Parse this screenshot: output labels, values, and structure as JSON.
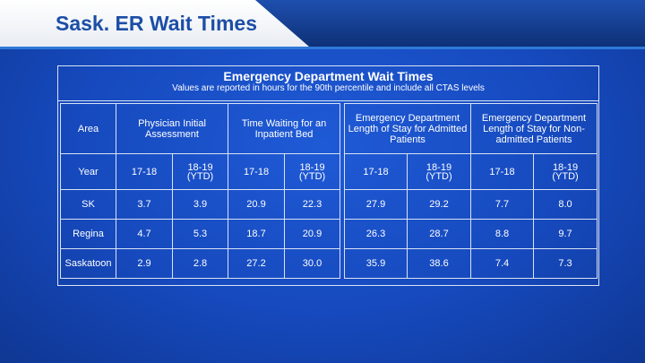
{
  "header": {
    "title": "Sask. ER Wait Times"
  },
  "table": {
    "title": "Emergency Department Wait Times",
    "subtitle": "Values are reported in hours for the 90th percentile and  include all CTAS levels",
    "area_label": "Area",
    "year_label": "Year",
    "groups": [
      "Physician Initial Assessment",
      "Time Waiting for an Inpatient Bed",
      "Emergency Department Length of Stay for Admitted Patients",
      "Emergency Department Length of Stay for Non-admitted Patients"
    ],
    "year_a": "17-18",
    "year_b_line1": "18-19",
    "year_b_line2": "(YTD)",
    "rows": [
      {
        "area": "SK",
        "v": [
          "3.7",
          "3.9",
          "20.9",
          "22.3",
          "27.9",
          "29.2",
          "7.7",
          "8.0"
        ]
      },
      {
        "area": "Regina",
        "v": [
          "4.7",
          "5.3",
          "18.7",
          "20.9",
          "26.3",
          "28.7",
          "8.8",
          "9.7"
        ]
      },
      {
        "area": "Saskatoon",
        "v": [
          "2.9",
          "2.8",
          "27.2",
          "30.0",
          "35.9",
          "38.6",
          "7.4",
          "7.3"
        ]
      }
    ]
  }
}
